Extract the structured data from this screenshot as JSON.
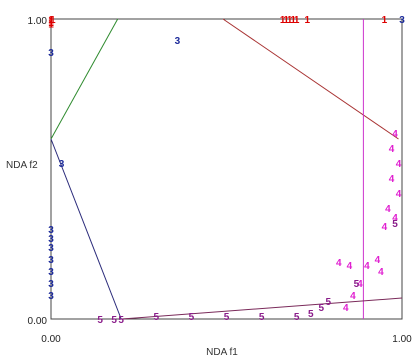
{
  "chart_data": {
    "type": "scatter",
    "xlabel": "NDA f1",
    "ylabel": "NDA f2",
    "xlim": [
      0,
      1
    ],
    "ylim": [
      0,
      1
    ],
    "x_ticks": [
      "0.00",
      "1.00"
    ],
    "y_ticks": [
      "0.00",
      "1.00"
    ],
    "grid": false,
    "series": [
      {
        "name": "1",
        "color": "#dd0000",
        "points": [
          [
            0.0,
            1.0
          ],
          [
            0.0,
            0.995
          ],
          [
            0.0,
            0.99
          ],
          [
            0.005,
            1.0
          ],
          [
            0.0,
            0.985
          ],
          [
            0.66,
            1.0
          ],
          [
            0.67,
            1.0
          ],
          [
            0.68,
            1.0
          ],
          [
            0.69,
            1.0
          ],
          [
            0.7,
            1.0
          ],
          [
            0.73,
            1.0
          ],
          [
            0.95,
            1.0
          ]
        ]
      },
      {
        "name": "3",
        "color": "#1c2a9a",
        "points": [
          [
            0.0,
            0.89
          ],
          [
            0.36,
            0.93
          ],
          [
            0.03,
            0.52
          ],
          [
            0.0,
            0.3
          ],
          [
            0.0,
            0.27
          ],
          [
            0.0,
            0.24
          ],
          [
            0.0,
            0.2
          ],
          [
            0.0,
            0.16
          ],
          [
            0.0,
            0.12
          ],
          [
            0.0,
            0.08
          ],
          [
            1.0,
            1.0
          ]
        ]
      },
      {
        "name": "4",
        "color": "#e020d0",
        "points": [
          [
            0.98,
            0.62
          ],
          [
            0.97,
            0.57
          ],
          [
            0.99,
            0.52
          ],
          [
            0.97,
            0.47
          ],
          [
            0.99,
            0.42
          ],
          [
            0.96,
            0.37
          ],
          [
            0.98,
            0.34
          ],
          [
            0.95,
            0.31
          ],
          [
            0.93,
            0.2
          ],
          [
            0.9,
            0.18
          ],
          [
            0.94,
            0.16
          ],
          [
            0.85,
            0.18
          ],
          [
            0.82,
            0.19
          ],
          [
            0.88,
            0.12
          ],
          [
            0.86,
            0.08
          ],
          [
            0.84,
            0.04
          ]
        ]
      },
      {
        "name": "5",
        "color": "#8a1c8a",
        "points": [
          [
            0.14,
            0.0
          ],
          [
            0.18,
            0.0
          ],
          [
            0.2,
            0.0
          ],
          [
            0.98,
            0.32
          ],
          [
            0.87,
            0.12
          ],
          [
            0.79,
            0.06
          ],
          [
            0.77,
            0.04
          ],
          [
            0.74,
            0.02
          ],
          [
            0.3,
            0.01
          ],
          [
            0.4,
            0.01
          ],
          [
            0.5,
            0.01
          ],
          [
            0.6,
            0.01
          ],
          [
            0.7,
            0.01
          ]
        ]
      }
    ],
    "hulls": [
      {
        "name": "group-1-boundary",
        "color": "#a83232",
        "points": [
          [
            0.49,
            1.0
          ],
          [
            0.99,
            0.6
          ]
        ]
      },
      {
        "name": "group-2-boundary",
        "color": "#2e8b2e",
        "points": [
          [
            0.0,
            0.6
          ],
          [
            0.19,
            1.0
          ]
        ]
      },
      {
        "name": "group-3-boundary",
        "color": "#2a2a7a",
        "points": [
          [
            0.0,
            0.6
          ],
          [
            0.2,
            0.0
          ]
        ]
      },
      {
        "name": "group-4-boundary",
        "color": "#cc33cc",
        "points": [
          [
            0.89,
            0.0
          ],
          [
            0.89,
            1.0
          ]
        ]
      },
      {
        "name": "group-5-boundary",
        "color": "#7a2a5a",
        "points": [
          [
            0.2,
            0.0
          ],
          [
            1.0,
            0.07
          ]
        ]
      }
    ]
  }
}
